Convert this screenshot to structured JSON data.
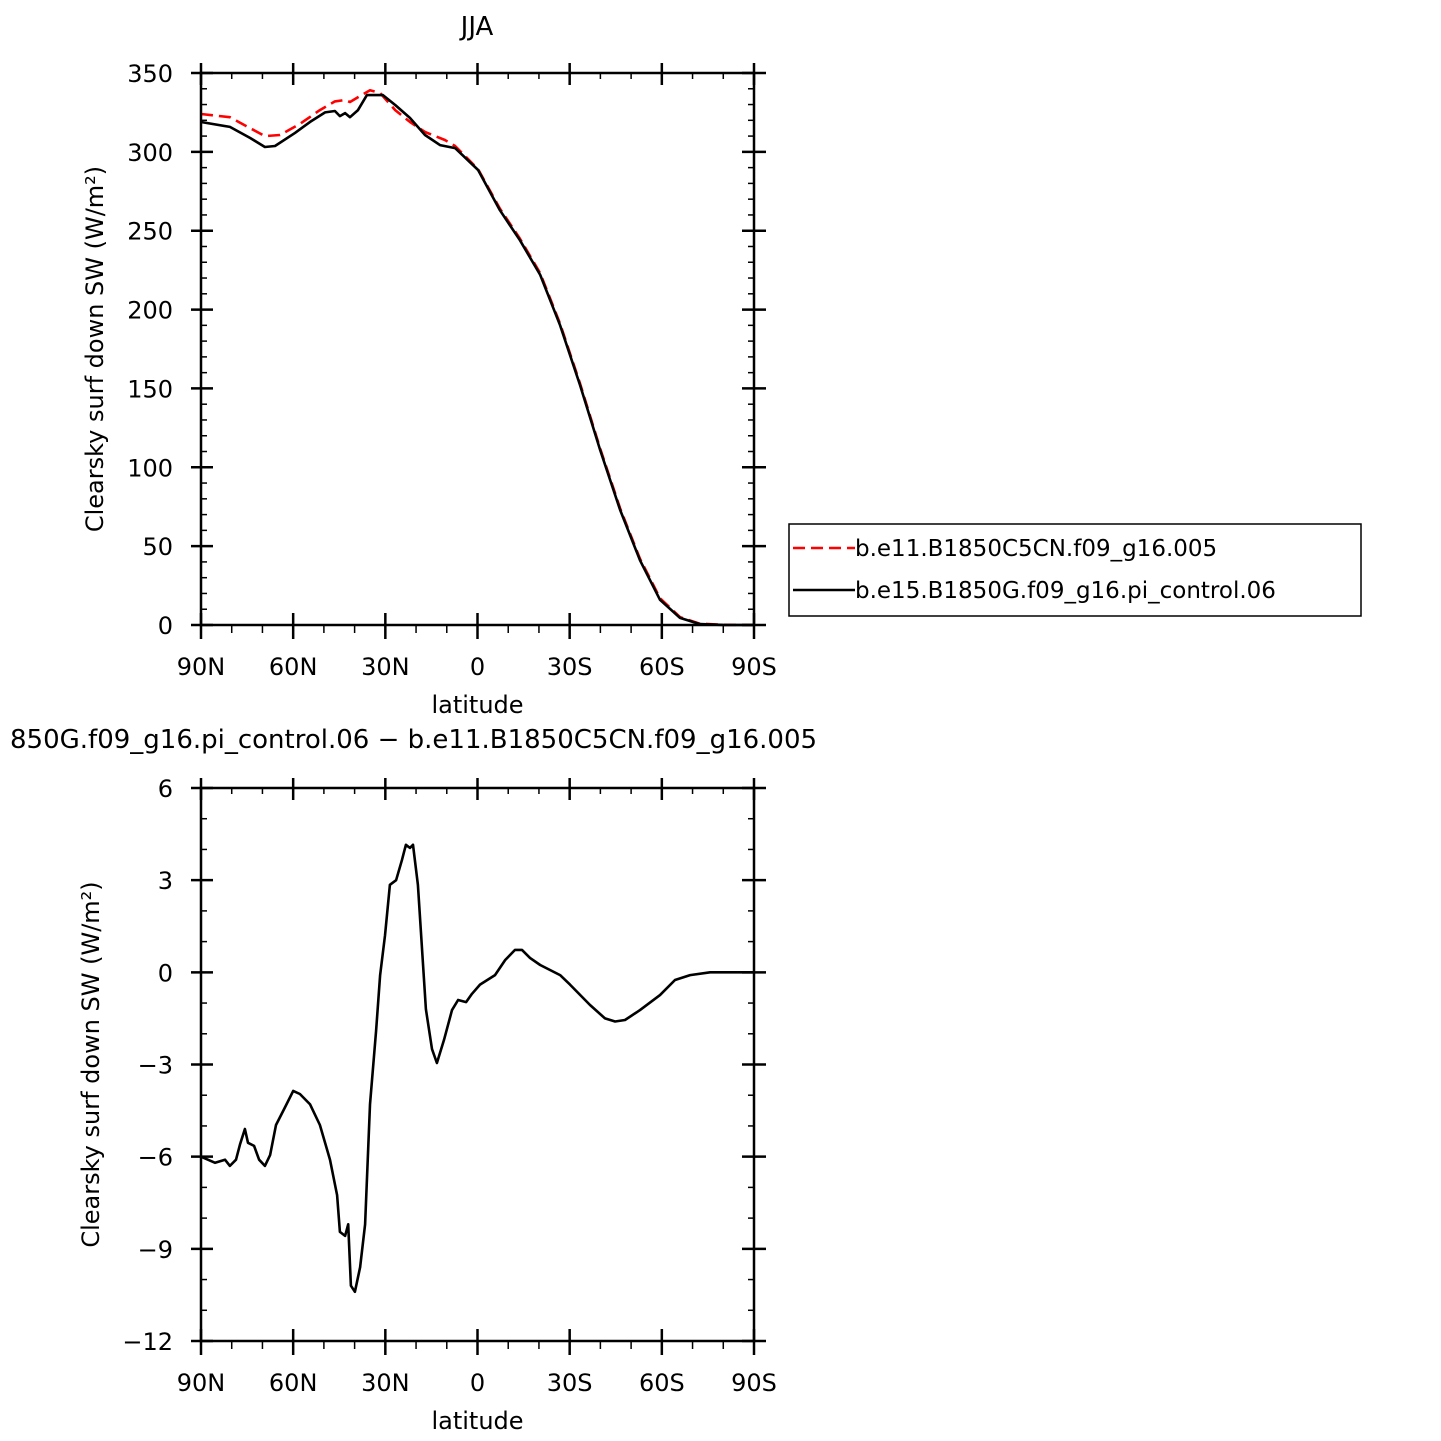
{
  "chart_data": [
    {
      "type": "line",
      "title": "JJA",
      "xlabel": "latitude",
      "ylabel": "Clearsky surf down SW (W/m²)",
      "xlim": [
        90,
        -90
      ],
      "ylim": [
        0,
        350
      ],
      "xticks": [
        90,
        60,
        30,
        0,
        -30,
        -60,
        -90
      ],
      "xtick_labels": [
        "90N",
        "60N",
        "30N",
        "0",
        "30S",
        "60S",
        "90S"
      ],
      "yticks": [
        0,
        50,
        100,
        150,
        200,
        250,
        300,
        350
      ],
      "ytick_labels": [
        "0",
        "50",
        "100",
        "150",
        "200",
        "250",
        "300",
        "350"
      ],
      "grid": false,
      "legend_placement": "right",
      "series": [
        {
          "name": "b.e11.B1850C5CN.f09_g16.005",
          "color": "#ff0000",
          "style": "dashed",
          "x": [
            90,
            80.6,
            74,
            69.2,
            64.3,
            57.8,
            51.3,
            46.4,
            43.1,
            41.5,
            38.2,
            35,
            31.7,
            26.8,
            22,
            17.1,
            10.6,
            7.3,
            -0.2,
            -7.3,
            -13.8,
            -20.4,
            -26.9,
            -33.4,
            -39.9,
            -46.4,
            -52.9,
            -59.4,
            -65.9,
            -72.4,
            -80,
            -90
          ],
          "y": [
            324,
            322,
            315,
            310,
            310.7,
            317.7,
            326.5,
            332,
            332.9,
            331.6,
            335.4,
            339,
            337.3,
            326.5,
            319,
            312.6,
            307.5,
            303.7,
            289,
            264,
            245,
            223,
            191,
            153,
            112,
            74,
            42,
            17,
            5,
            0.8,
            0.1,
            0
          ]
        },
        {
          "name": "b.e15.B1850G.f09_g16.pi_control.06",
          "color": "#000000",
          "style": "solid",
          "x": [
            90,
            80.6,
            74,
            69.2,
            65.9,
            59.4,
            54.5,
            49.6,
            46.4,
            44.8,
            43.1,
            41.5,
            38.9,
            36,
            30.8,
            26.8,
            22,
            17.1,
            12.2,
            7.3,
            -0.2,
            -7.3,
            -13.8,
            -20.4,
            -26.9,
            -33.4,
            -39.9,
            -46.4,
            -52.9,
            -59.4,
            -65.9,
            -72.4,
            -80,
            -90
          ],
          "y": [
            318.9,
            315.8,
            308.8,
            303.1,
            303.7,
            312,
            319,
            325,
            325.9,
            322.7,
            324.6,
            322,
            326.5,
            336,
            336,
            329.7,
            321.5,
            310.7,
            304.3,
            302.4,
            288.5,
            263,
            244,
            222,
            190,
            152,
            111,
            73,
            41,
            16,
            4.5,
            0.6,
            0.05,
            0
          ]
        }
      ]
    },
    {
      "type": "line",
      "title": "850G.f09_g16.pi_control.06 − b.e11.B1850C5CN.f09_g16.005",
      "xlabel": "latitude",
      "ylabel": "Clearsky surf down SW (W/m²)",
      "xlim": [
        90,
        -90
      ],
      "ylim": [
        -12,
        6
      ],
      "xticks": [
        90,
        60,
        30,
        0,
        -30,
        -60,
        -90
      ],
      "xtick_labels": [
        "90N",
        "60N",
        "30N",
        "0",
        "30S",
        "60S",
        "90S"
      ],
      "yticks": [
        -12,
        -9,
        -6,
        -3,
        0,
        3,
        6
      ],
      "ytick_labels": [
        "−12",
        "−9",
        "−6",
        "−3",
        "0",
        "3",
        "6"
      ],
      "grid": false,
      "series": [
        {
          "color": "#000000",
          "style": "solid",
          "x": [
            90,
            85.4,
            82.2,
            80.6,
            78.6,
            77.3,
            75.7,
            74.7,
            72.7,
            71.1,
            69.2,
            67.5,
            65.6,
            62.7,
            60,
            57.8,
            54.5,
            51.3,
            48,
            45.7,
            44.8,
            43.1,
            42.1,
            41.2,
            39.9,
            38.2,
            36.6,
            35,
            33,
            31.7,
            30.1,
            28.5,
            26.5,
            24.6,
            23.3,
            22,
            21,
            19.4,
            16.8,
            14.8,
            13.2,
            10.9,
            8.3,
            6.3,
            3.7,
            1.8,
            -0.8,
            -5.7,
            -9,
            -12.2,
            -14.5,
            -17.1,
            -20.4,
            -26.9,
            -30.1,
            -36.6,
            -41.5,
            -44.8,
            -48,
            -52.9,
            -59.4,
            -64.3,
            -69.2,
            -75.7,
            -90
          ],
          "y": [
            -6.0,
            -6.2,
            -6.1,
            -6.3,
            -6.1,
            -5.6,
            -5.1,
            -5.55,
            -5.65,
            -6.1,
            -6.3,
            -5.95,
            -4.97,
            -4.4,
            -3.86,
            -3.96,
            -4.3,
            -4.97,
            -6.1,
            -7.25,
            -8.45,
            -8.58,
            -8.2,
            -10.2,
            -10.4,
            -9.6,
            -8.2,
            -4.3,
            -1.9,
            -0.1,
            1.2,
            2.85,
            3.0,
            3.65,
            4.15,
            4.05,
            4.15,
            2.85,
            -1.2,
            -2.5,
            -2.95,
            -2.2,
            -1.23,
            -0.9,
            -0.97,
            -0.7,
            -0.4,
            -0.09,
            0.4,
            0.73,
            0.73,
            0.47,
            0.24,
            -0.09,
            -0.4,
            -1.06,
            -1.5,
            -1.6,
            -1.55,
            -1.23,
            -0.74,
            -0.25,
            -0.09,
            0,
            0
          ]
        }
      ]
    }
  ]
}
